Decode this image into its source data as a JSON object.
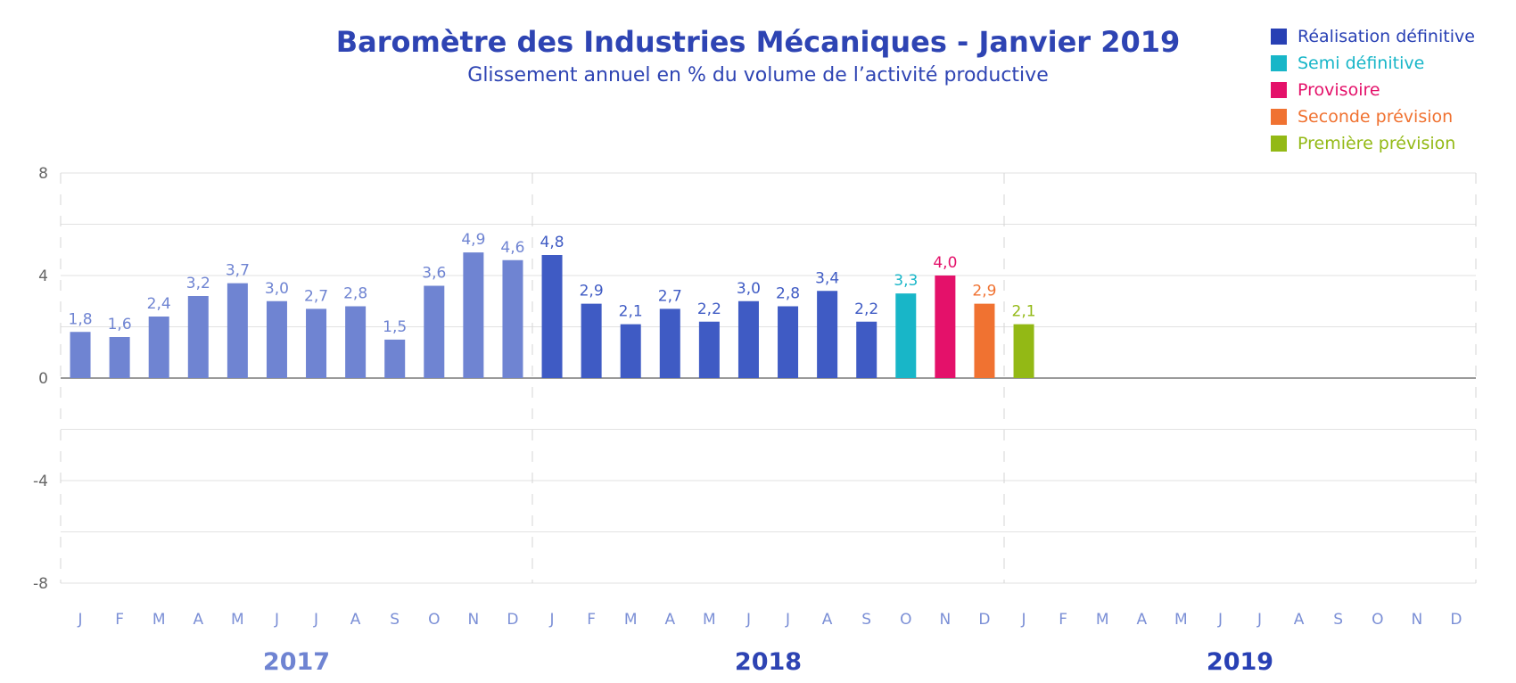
{
  "header": {
    "title": "Baromètre des Industries Mécaniques - Janvier 2019",
    "subtitle": "Glissement annuel en % du volume de l’activité productive"
  },
  "legend": [
    {
      "label": "Réalisation définitive",
      "color": "#2840b4"
    },
    {
      "label": "Semi définitive",
      "color": "#18b6c8"
    },
    {
      "label": "Provisoire",
      "color": "#e4116a"
    },
    {
      "label": "Seconde prévision",
      "color": "#f07231"
    },
    {
      "label": "Première prévision",
      "color": "#93b915"
    }
  ],
  "chart_data": {
    "type": "bar",
    "ylim": [
      -8,
      8
    ],
    "yticks": [
      8,
      4,
      0,
      -4,
      -8
    ],
    "grid": true,
    "legend_position": "top-right",
    "months": [
      "J",
      "F",
      "M",
      "A",
      "M",
      "J",
      "J",
      "A",
      "S",
      "O",
      "N",
      "D"
    ],
    "years": [
      {
        "label": "2017",
        "color": "#6f84d2"
      },
      {
        "label": "2018",
        "color": "#2e44b3"
      },
      {
        "label": "2019",
        "color": "#2840b4"
      }
    ],
    "bars": [
      {
        "year": "2017",
        "month": "J",
        "value": 1.8,
        "label": "1,8",
        "status": "Réalisation définitive",
        "color": "#6f84d2"
      },
      {
        "year": "2017",
        "month": "F",
        "value": 1.6,
        "label": "1,6",
        "status": "Réalisation définitive",
        "color": "#6f84d2"
      },
      {
        "year": "2017",
        "month": "M",
        "value": 2.4,
        "label": "2,4",
        "status": "Réalisation définitive",
        "color": "#6f84d2"
      },
      {
        "year": "2017",
        "month": "A",
        "value": 3.2,
        "label": "3,2",
        "status": "Réalisation définitive",
        "color": "#6f84d2"
      },
      {
        "year": "2017",
        "month": "M",
        "value": 3.7,
        "label": "3,7",
        "status": "Réalisation définitive",
        "color": "#6f84d2"
      },
      {
        "year": "2017",
        "month": "J",
        "value": 3.0,
        "label": "3,0",
        "status": "Réalisation définitive",
        "color": "#6f84d2"
      },
      {
        "year": "2017",
        "month": "J",
        "value": 2.7,
        "label": "2,7",
        "status": "Réalisation définitive",
        "color": "#6f84d2"
      },
      {
        "year": "2017",
        "month": "A",
        "value": 2.8,
        "label": "2,8",
        "status": "Réalisation définitive",
        "color": "#6f84d2"
      },
      {
        "year": "2017",
        "month": "S",
        "value": 1.5,
        "label": "1,5",
        "status": "Réalisation définitive",
        "color": "#6f84d2"
      },
      {
        "year": "2017",
        "month": "O",
        "value": 3.6,
        "label": "3,6",
        "status": "Réalisation définitive",
        "color": "#6f84d2"
      },
      {
        "year": "2017",
        "month": "N",
        "value": 4.9,
        "label": "4,9",
        "status": "Réalisation définitive",
        "color": "#6f84d2"
      },
      {
        "year": "2017",
        "month": "D",
        "value": 4.6,
        "label": "4,6",
        "status": "Réalisation définitive",
        "color": "#6f84d2"
      },
      {
        "year": "2018",
        "month": "J",
        "value": 4.8,
        "label": "4,8",
        "status": "Réalisation définitive",
        "color": "#3f5bc4"
      },
      {
        "year": "2018",
        "month": "F",
        "value": 2.9,
        "label": "2,9",
        "status": "Réalisation définitive",
        "color": "#3f5bc4"
      },
      {
        "year": "2018",
        "month": "M",
        "value": 2.1,
        "label": "2,1",
        "status": "Réalisation définitive",
        "color": "#3f5bc4"
      },
      {
        "year": "2018",
        "month": "A",
        "value": 2.7,
        "label": "2,7",
        "status": "Réalisation définitive",
        "color": "#3f5bc4"
      },
      {
        "year": "2018",
        "month": "M",
        "value": 2.2,
        "label": "2,2",
        "status": "Réalisation définitive",
        "color": "#3f5bc4"
      },
      {
        "year": "2018",
        "month": "J",
        "value": 3.0,
        "label": "3,0",
        "status": "Réalisation définitive",
        "color": "#3f5bc4"
      },
      {
        "year": "2018",
        "month": "J",
        "value": 2.8,
        "label": "2,8",
        "status": "Réalisation définitive",
        "color": "#3f5bc4"
      },
      {
        "year": "2018",
        "month": "A",
        "value": 3.4,
        "label": "3,4",
        "status": "Réalisation définitive",
        "color": "#3f5bc4"
      },
      {
        "year": "2018",
        "month": "S",
        "value": 2.2,
        "label": "2,2",
        "status": "Réalisation définitive",
        "color": "#3f5bc4"
      },
      {
        "year": "2018",
        "month": "O",
        "value": 3.3,
        "label": "3,3",
        "status": "Semi définitive",
        "color": "#18b6c8"
      },
      {
        "year": "2018",
        "month": "N",
        "value": 4.0,
        "label": "4,0",
        "status": "Provisoire",
        "color": "#e4116a"
      },
      {
        "year": "2018",
        "month": "D",
        "value": 2.9,
        "label": "2,9",
        "status": "Seconde prévision",
        "color": "#f07231"
      },
      {
        "year": "2019",
        "month": "J",
        "value": 2.1,
        "label": "2,1",
        "status": "Première prévision",
        "color": "#93b915"
      }
    ]
  }
}
